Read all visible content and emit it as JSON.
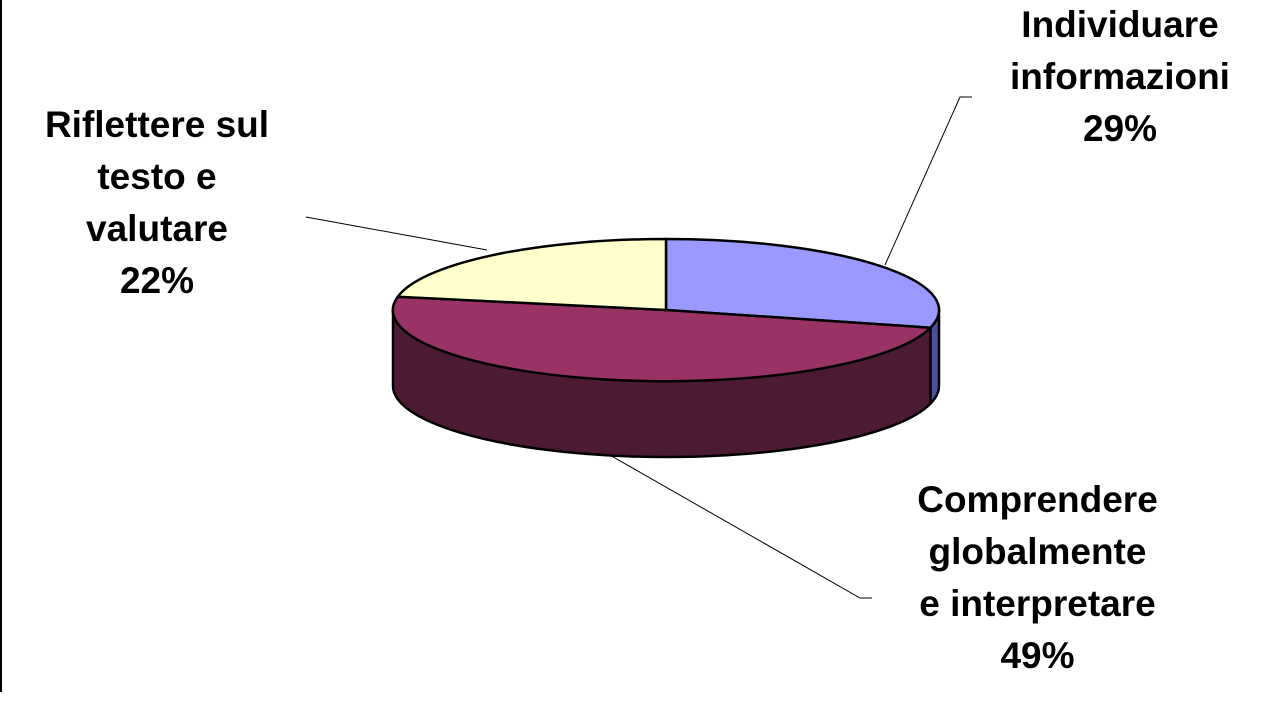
{
  "chart_data": {
    "type": "pie",
    "style": "3d-exploded-less",
    "legend": "none",
    "slices": [
      {
        "label": "Individuare informazioni",
        "label_lines": [
          "Individuare",
          "informazioni"
        ],
        "value": 29,
        "value_label": "29%",
        "color": "#9999FF",
        "side_color": "#4D4D99"
      },
      {
        "label": "Comprendere globalmente e interpretare",
        "label_lines": [
          "Comprendere",
          "globalmente",
          "e interpretare"
        ],
        "value": 49,
        "value_label": "49%",
        "color": "#993366",
        "side_color": "#4D1A33"
      },
      {
        "label": "Riflettere sul testo e valutare",
        "label_lines": [
          "Riflettere sul",
          "testo e",
          "valutare"
        ],
        "value": 22,
        "value_label": "22%",
        "color": "#FFFFCC",
        "side_color": "#99997A"
      }
    ]
  }
}
